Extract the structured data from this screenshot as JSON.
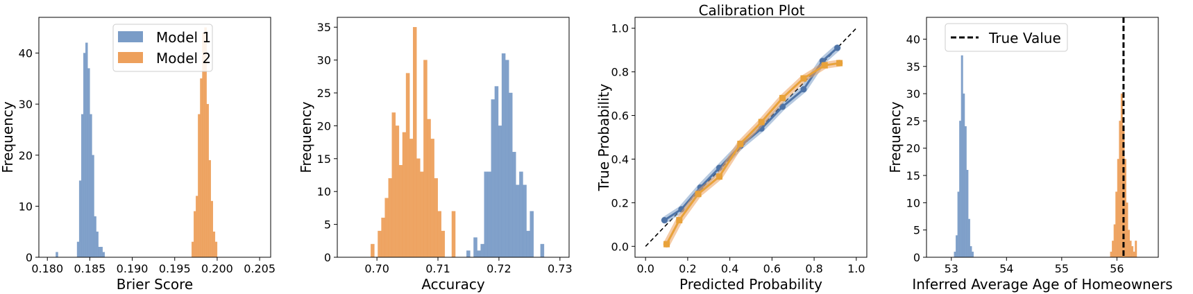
{
  "figure": {
    "colors": {
      "model1": "#7a9cc7",
      "model2": "#eda05c",
      "model1_line": "#4e73a6",
      "model2_line": "#e8a23a",
      "diagonal": "#000000"
    }
  },
  "chart_data": [
    {
      "type": "bar",
      "subtype": "histogram",
      "title": "",
      "xlabel": "Brier Score",
      "ylabel": "Frequency",
      "xlim": [
        0.179,
        0.2063
      ],
      "ylim": [
        0,
        47
      ],
      "xticks": [
        "0.180",
        "0.185",
        "0.190",
        "0.195",
        "0.200",
        "0.205"
      ],
      "yticks": [
        "0",
        "10",
        "20",
        "30",
        "40"
      ],
      "legend": {
        "position": "top-center",
        "entries": [
          "Model 1",
          "Model 2"
        ]
      },
      "series": [
        {
          "name": "Model 1",
          "bin_start": 0.181,
          "bin_width": 0.00025,
          "values": [
            1,
            0,
            0,
            0,
            0,
            0,
            0,
            0,
            0,
            0,
            3,
            15,
            28,
            40,
            42,
            37,
            28,
            20,
            8,
            5,
            2,
            2,
            1
          ]
        },
        {
          "name": "Model 2",
          "bin_start": 0.197,
          "bin_width": 0.00025,
          "values": [
            3,
            9,
            12,
            28,
            35,
            44,
            45,
            30,
            19,
            11,
            5,
            3
          ]
        }
      ]
    },
    {
      "type": "bar",
      "subtype": "histogram",
      "title": "",
      "xlabel": "Accuracy",
      "ylabel": "Frequency",
      "xlim": [
        0.6935,
        0.7315
      ],
      "ylim": [
        0,
        36.5
      ],
      "xticks": [
        "0.70",
        "0.71",
        "0.72",
        "0.73"
      ],
      "yticks": [
        "0",
        "5",
        "10",
        "15",
        "20",
        "25",
        "30",
        "35"
      ],
      "series": [
        {
          "name": "Model 2",
          "bin_start": 0.699,
          "bin_width": 0.000577,
          "values": [
            2,
            0,
            4,
            6,
            9,
            12,
            22,
            20,
            14,
            19,
            28,
            18,
            35,
            15,
            13,
            30,
            21,
            18,
            12,
            7,
            4,
            0,
            0,
            7
          ]
        },
        {
          "name": "Model 1",
          "bin_start": 0.7147,
          "bin_width": 0.000577,
          "values": [
            1,
            0,
            3,
            1,
            2,
            13,
            13,
            24,
            26,
            20,
            31,
            30,
            25,
            16,
            11,
            13,
            11,
            4,
            7,
            0,
            0,
            2
          ]
        }
      ]
    },
    {
      "type": "line",
      "title": "Calibration Plot",
      "xlabel": "Predicted Probability",
      "ylabel": "True Probability",
      "xlim": [
        -0.05,
        1.05
      ],
      "ylim": [
        -0.05,
        1.05
      ],
      "xticks": [
        "0.0",
        "0.2",
        "0.4",
        "0.6",
        "0.8",
        "1.0"
      ],
      "yticks": [
        "0.0",
        "0.2",
        "0.4",
        "0.6",
        "0.8",
        "1.0"
      ],
      "reference_line": {
        "x": [
          0,
          1
        ],
        "y": [
          0,
          1
        ],
        "style": "dashed"
      },
      "series": [
        {
          "name": "Model 1",
          "x": [
            0.09,
            0.17,
            0.26,
            0.35,
            0.45,
            0.55,
            0.65,
            0.75,
            0.84,
            0.91
          ],
          "y": [
            0.12,
            0.17,
            0.27,
            0.36,
            0.46,
            0.54,
            0.64,
            0.72,
            0.85,
            0.91
          ]
        },
        {
          "name": "Model 2",
          "x": [
            0.1,
            0.16,
            0.25,
            0.35,
            0.45,
            0.55,
            0.65,
            0.75,
            0.85,
            0.92
          ],
          "y": [
            0.01,
            0.12,
            0.24,
            0.32,
            0.47,
            0.57,
            0.68,
            0.77,
            0.83,
            0.84
          ]
        }
      ]
    },
    {
      "type": "bar",
      "subtype": "histogram",
      "title": "",
      "xlabel": "Inferred Average Age of Homeowners",
      "ylabel": "Frequency",
      "xlim": [
        52.55,
        56.75
      ],
      "ylim": [
        0,
        44
      ],
      "xticks": [
        "53",
        "54",
        "55",
        "56"
      ],
      "yticks": [
        "0",
        "5",
        "10",
        "15",
        "20",
        "25",
        "30",
        "35",
        "40"
      ],
      "reference_line": {
        "x": 56.12,
        "label": "True Value",
        "style": "dashed"
      },
      "legend": {
        "position": "top-left",
        "entries": [
          "True Value"
        ]
      },
      "series": [
        {
          "name": "Model 1",
          "bin_start": 53.05,
          "bin_width": 0.032,
          "values": [
            1,
            4,
            12,
            25,
            37,
            30,
            24,
            16,
            7,
            2,
            1
          ]
        },
        {
          "name": "Model 2",
          "bin_start": 55.88,
          "bin_width": 0.032,
          "values": [
            1,
            3,
            6,
            12,
            18,
            25,
            30,
            24,
            18,
            10,
            5,
            3,
            2,
            1,
            3
          ]
        }
      ]
    }
  ]
}
